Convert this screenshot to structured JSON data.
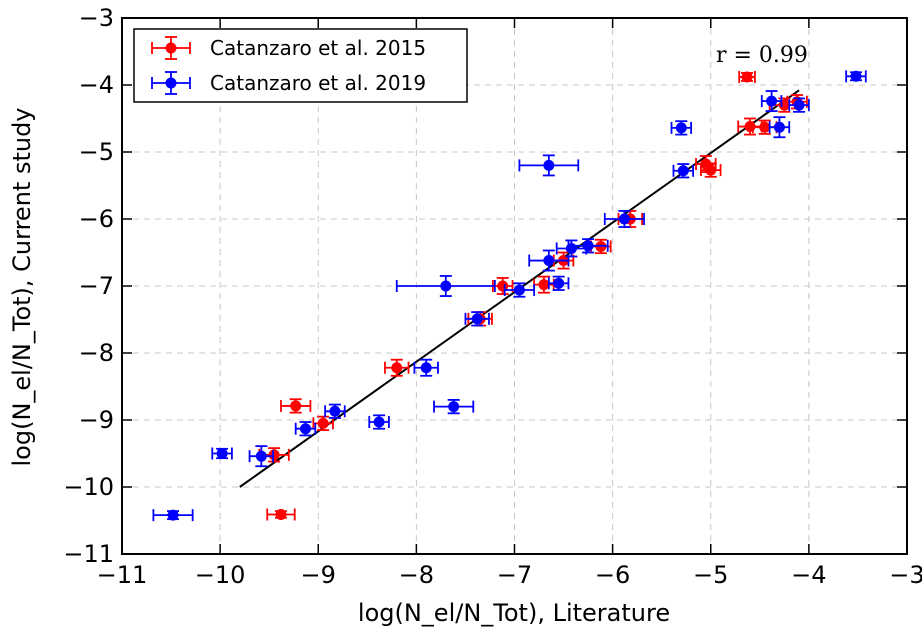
{
  "chart_data": {
    "type": "scatter",
    "xlabel": "log(N_el/N_Tot), Literature",
    "ylabel": "log(N_el/N_Tot), Current study",
    "xlim": [
      -11,
      -3
    ],
    "ylim": [
      -11,
      -3
    ],
    "xticks": [
      -11,
      -10,
      -9,
      -8,
      -7,
      -6,
      -5,
      -4,
      -3
    ],
    "yticks": [
      -11,
      -10,
      -9,
      -8,
      -7,
      -6,
      -5,
      -4,
      -3
    ],
    "grid": true,
    "legend_position": "top-left",
    "annotation": "r = 0.99",
    "series": [
      {
        "name": "Catanzaro et al. 2015",
        "color": "#ff0000",
        "points": [
          {
            "x": -9.38,
            "y": -10.41,
            "xerr": 0.14,
            "yerr": 0.05
          },
          {
            "x": -9.45,
            "y": -9.52,
            "xerr": 0.15,
            "yerr": 0.1
          },
          {
            "x": -9.23,
            "y": -8.79,
            "xerr": 0.15,
            "yerr": 0.1
          },
          {
            "x": -8.95,
            "y": -9.05,
            "xerr": 0.1,
            "yerr": 0.1
          },
          {
            "x": -8.2,
            "y": -8.22,
            "xerr": 0.12,
            "yerr": 0.12
          },
          {
            "x": -7.35,
            "y": -7.49,
            "xerr": 0.12,
            "yerr": 0.1
          },
          {
            "x": -7.12,
            "y": -7.0,
            "xerr": 0.1,
            "yerr": 0.12
          },
          {
            "x": -6.7,
            "y": -6.98,
            "xerr": 0.1,
            "yerr": 0.12
          },
          {
            "x": -6.5,
            "y": -6.62,
            "xerr": 0.1,
            "yerr": 0.12
          },
          {
            "x": -6.12,
            "y": -6.41,
            "xerr": 0.1,
            "yerr": 0.1
          },
          {
            "x": -5.82,
            "y": -6.0,
            "xerr": 0.12,
            "yerr": 0.12
          },
          {
            "x": -5.05,
            "y": -5.18,
            "xerr": 0.1,
            "yerr": 0.12
          },
          {
            "x": -5.0,
            "y": -5.27,
            "xerr": 0.1,
            "yerr": 0.1
          },
          {
            "x": -4.63,
            "y": -3.88,
            "xerr": 0.08,
            "yerr": 0.06
          },
          {
            "x": -4.6,
            "y": -4.62,
            "xerr": 0.12,
            "yerr": 0.12
          },
          {
            "x": -4.45,
            "y": -4.63,
            "xerr": 0.12,
            "yerr": 0.1
          },
          {
            "x": -4.25,
            "y": -4.3,
            "xerr": 0.15,
            "yerr": 0.1
          },
          {
            "x": -4.12,
            "y": -4.25,
            "xerr": 0.1,
            "yerr": 0.1
          }
        ]
      },
      {
        "name": "Catanzaro et al. 2019",
        "color": "#0000ff",
        "points": [
          {
            "x": -10.48,
            "y": -10.42,
            "xerr": 0.2,
            "yerr": 0.06
          },
          {
            "x": -9.98,
            "y": -9.5,
            "xerr": 0.1,
            "yerr": 0.07
          },
          {
            "x": -9.58,
            "y": -9.54,
            "xerr": 0.12,
            "yerr": 0.15
          },
          {
            "x": -9.13,
            "y": -9.13,
            "xerr": 0.1,
            "yerr": 0.1
          },
          {
            "x": -8.83,
            "y": -8.87,
            "xerr": 0.1,
            "yerr": 0.1
          },
          {
            "x": -8.38,
            "y": -9.03,
            "xerr": 0.1,
            "yerr": 0.1
          },
          {
            "x": -7.9,
            "y": -8.22,
            "xerr": 0.12,
            "yerr": 0.12
          },
          {
            "x": -7.7,
            "y": -7.0,
            "xerr": 0.5,
            "yerr": 0.15
          },
          {
            "x": -7.62,
            "y": -8.8,
            "xerr": 0.2,
            "yerr": 0.1
          },
          {
            "x": -7.38,
            "y": -7.49,
            "xerr": 0.12,
            "yerr": 0.1
          },
          {
            "x": -6.95,
            "y": -7.06,
            "xerr": 0.15,
            "yerr": 0.1
          },
          {
            "x": -6.65,
            "y": -5.2,
            "xerr": 0.3,
            "yerr": 0.15
          },
          {
            "x": -6.65,
            "y": -6.62,
            "xerr": 0.2,
            "yerr": 0.15
          },
          {
            "x": -6.55,
            "y": -6.96,
            "xerr": 0.1,
            "yerr": 0.1
          },
          {
            "x": -6.42,
            "y": -6.44,
            "xerr": 0.15,
            "yerr": 0.12
          },
          {
            "x": -6.25,
            "y": -6.4,
            "xerr": 0.2,
            "yerr": 0.1
          },
          {
            "x": -5.88,
            "y": -6.0,
            "xerr": 0.2,
            "yerr": 0.12
          },
          {
            "x": -5.3,
            "y": -4.64,
            "xerr": 0.1,
            "yerr": 0.1
          },
          {
            "x": -5.28,
            "y": -5.28,
            "xerr": 0.1,
            "yerr": 0.1
          },
          {
            "x": -4.38,
            "y": -4.24,
            "xerr": 0.1,
            "yerr": 0.15
          },
          {
            "x": -4.3,
            "y": -4.63,
            "xerr": 0.1,
            "yerr": 0.15
          },
          {
            "x": -4.1,
            "y": -4.3,
            "xerr": 0.1,
            "yerr": 0.1
          },
          {
            "x": -3.52,
            "y": -3.87,
            "xerr": 0.1,
            "yerr": 0.06
          }
        ]
      }
    ],
    "fit_line": {
      "color": "#000000",
      "from": [
        -9.8,
        -10.0
      ],
      "to": [
        -4.1,
        -4.08
      ]
    }
  }
}
